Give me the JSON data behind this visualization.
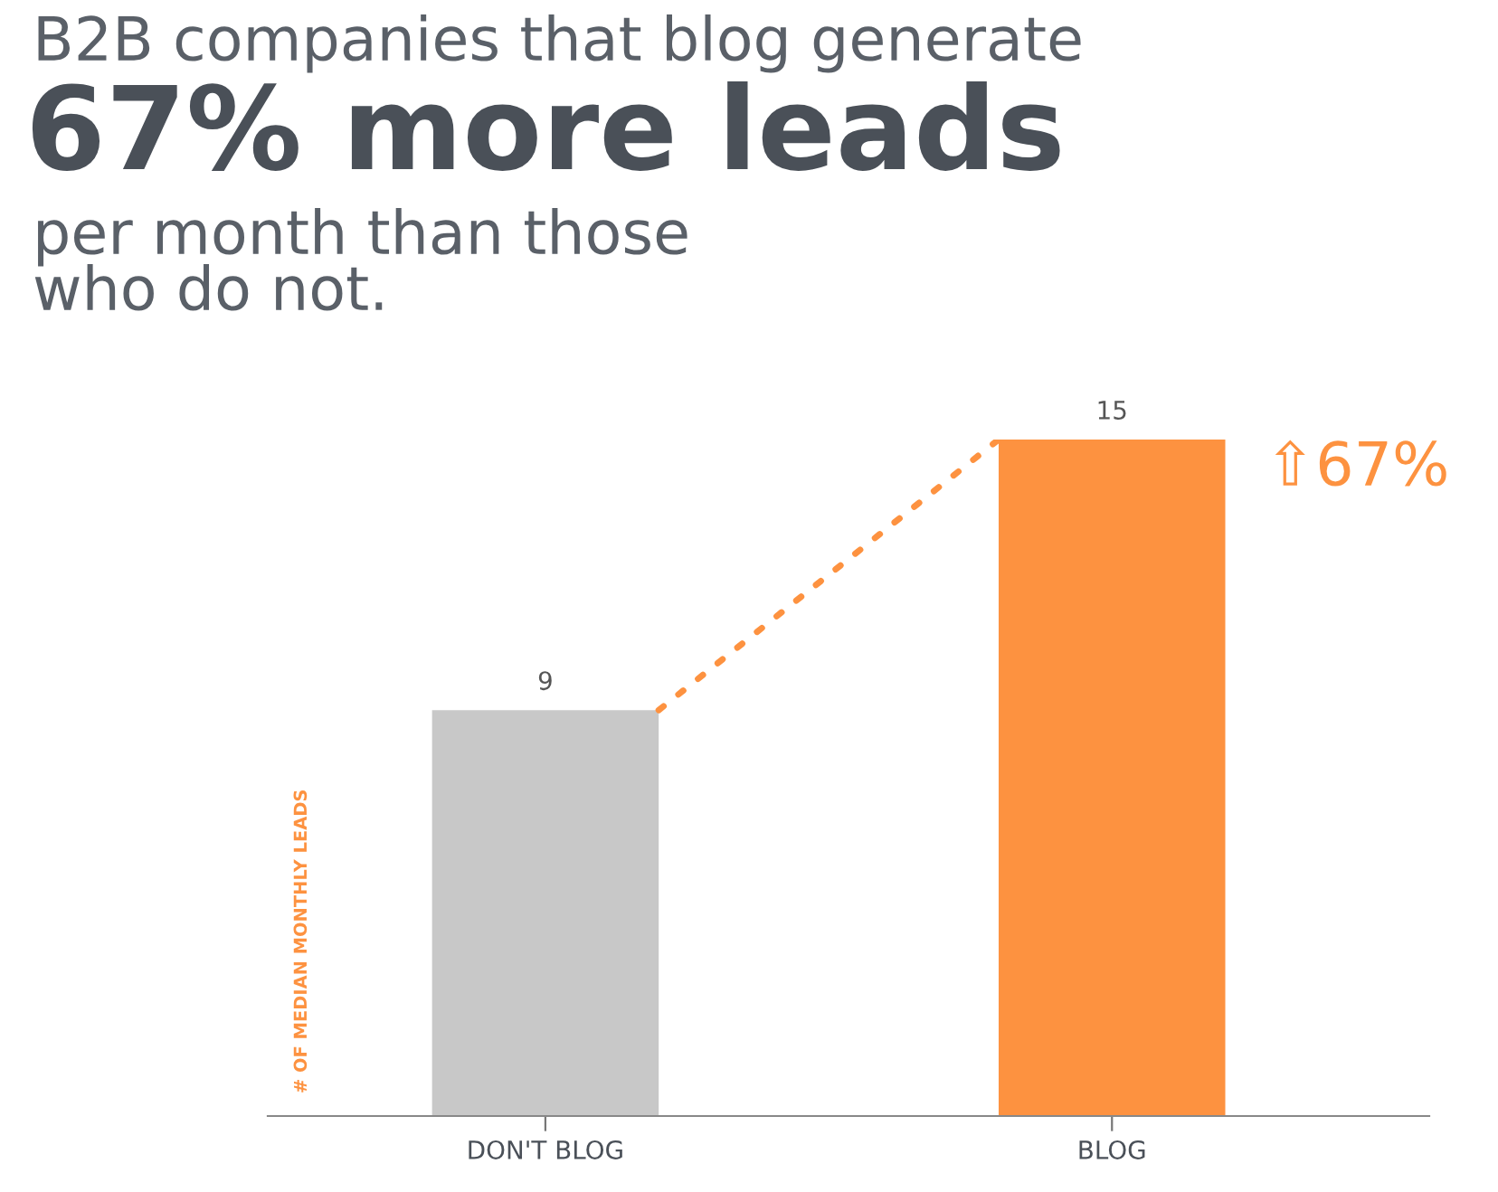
{
  "chart_data": {
    "type": "bar",
    "title": "B2B companies that blog generate",
    "subtitle": "67% more leads",
    "annotations": [
      "per month than those\nwho do not.",
      "⇧67%"
    ],
    "ylabel": "# OF MEDIAN MONTHLY LEADS",
    "categories": [
      "DON'T BLOG",
      "BLOG"
    ],
    "values": [
      9,
      15
    ],
    "colors": [
      "#c8c8c8",
      "#fd9240"
    ],
    "data_labels": true,
    "grid": false,
    "tick_labels": "x"
  }
}
